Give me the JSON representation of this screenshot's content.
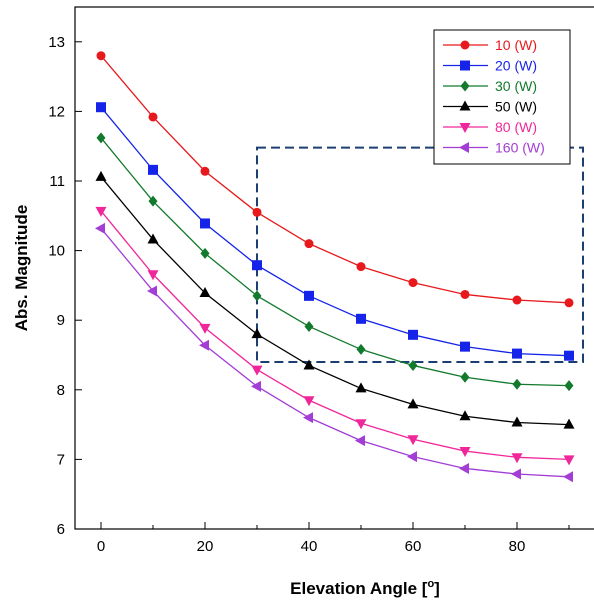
{
  "chart_data": {
    "type": "line",
    "xlabel": "Elevation Angle [",
    "xlabel_sup": "o",
    "xlabel_close": "]",
    "ylabel": "Abs. Magnitude",
    "xlim": [
      -5,
      95
    ],
    "ylim": [
      6,
      13.5
    ],
    "x_ticks": [
      "0",
      "20",
      "40",
      "60",
      "80"
    ],
    "y_ticks": [
      "6",
      "7",
      "8",
      "9",
      "10",
      "11",
      "12",
      "13"
    ],
    "legend_placement": "top-right",
    "grid": false,
    "x": [
      0,
      10,
      20,
      30,
      40,
      50,
      60,
      70,
      80,
      90
    ],
    "series": [
      {
        "name": "10 (W)",
        "color": "#e8191c",
        "marker": "circle",
        "values": [
          12.8,
          11.92,
          11.14,
          10.55,
          10.1,
          9.77,
          9.54,
          9.37,
          9.29,
          9.25
        ]
      },
      {
        "name": "20 (W)",
        "color": "#1524e8",
        "marker": "square",
        "values": [
          12.06,
          11.16,
          10.39,
          9.79,
          9.35,
          9.02,
          8.79,
          8.62,
          8.52,
          8.49
        ]
      },
      {
        "name": "30 (W)",
        "color": "#127a2c",
        "marker": "diamond",
        "values": [
          11.62,
          10.71,
          9.96,
          9.35,
          8.91,
          8.58,
          8.35,
          8.18,
          8.08,
          8.06
        ]
      },
      {
        "name": "50 (W)",
        "color": "#000000",
        "marker": "triangle-up",
        "values": [
          11.06,
          10.16,
          9.39,
          8.8,
          8.35,
          8.02,
          7.79,
          7.62,
          7.53,
          7.5
        ]
      },
      {
        "name": "80 (W)",
        "color": "#f0279b",
        "marker": "triangle-down",
        "values": [
          10.57,
          9.66,
          8.89,
          8.29,
          7.85,
          7.52,
          7.29,
          7.12,
          7.03,
          7.0
        ]
      },
      {
        "name": "160 (W)",
        "color": "#a23dd6",
        "marker": "triangle-left",
        "values": [
          10.32,
          9.42,
          8.64,
          8.05,
          7.6,
          7.27,
          7.04,
          6.87,
          6.79,
          6.75
        ]
      }
    ],
    "annotation_box": {
      "x_range": [
        30,
        90
      ],
      "y_range": [
        8.4,
        11.48
      ],
      "color": "#1c3f73",
      "style": "dashed"
    }
  }
}
